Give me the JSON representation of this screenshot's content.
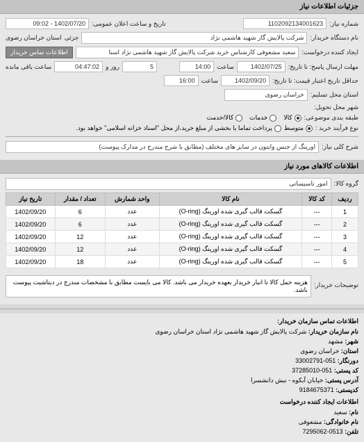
{
  "header": {
    "title": "جزئیات اطلاعات نیاز"
  },
  "form": {
    "req_number_label": "شماره نیاز:",
    "req_number": "1102092134001623",
    "announce_label": "تاریخ و ساعت اعلان عمومی:",
    "announce_value": "1402/07/20 - 09:02",
    "buyer_org_label": "نام دستگاه خریدار:",
    "buyer_org": "شرکت پالایش گاز شهید هاشمی نژاد",
    "jazi_label": "جزئی",
    "province": "استان خراسان رضوی",
    "requester_label": "ایجاد کننده درخواست:",
    "requester": "سعید مشعوفی کارشناس خرید شرکت پالایش گاز شهید هاشمی نژاد   استا",
    "contact_btn": "اطلاعات تماس خریدار",
    "deadline_send_label": "مهلت ارسال پاسخ: تا تاریخ:",
    "deadline_send_date": "1402/07/25",
    "deadline_send_time_label": "ساعت",
    "deadline_send_time": "14:00",
    "remaining_days": "5",
    "remaining_days_label": "روز و",
    "remaining_time": "04:47:02",
    "remaining_label": "ساعت باقی مانده",
    "validity_label": "حداقل تاریخ اعتبار قیمت: تا تاریخ:",
    "validity_date": "1402/09/20",
    "validity_time_label": "ساعت",
    "validity_time": "16:00",
    "location_label": "استان محل تسلیم:",
    "location": "خراسان رضوی",
    "city_label": "شهر محل تحویل:",
    "category_label": "طبقه بندی موضوعی:",
    "cat_kala": "کالا",
    "cat_khadamat": "خدمات",
    "cat_kala_khadamat": "کالا/خدمت",
    "purchase_type_label": "نوع فرآیند خرید :",
    "pt_medium": "متوسط",
    "pt_note": "پرداخت تماما یا بخشی از مبلغ خرید،از محل \"اسناد خزانه اسلامی\" خواهد بود.",
    "need_desc_label": "شرح کلی نیاز:",
    "need_desc": "اورینگ از جنس وایتون در سایز های مختلف (مطابق با شرح مندرج در مدارک پیوست)"
  },
  "goods_header": "اطلاعات کالاهای مورد نیاز",
  "goods_group_label": "گروه کالا:",
  "goods_group": "امور تاسیساتی",
  "table": {
    "columns": [
      "ردیف",
      "کد کالا",
      "نام کالا",
      "واحد شمارش",
      "تعداد / مقدار",
      "تاریخ نیاز"
    ],
    "rows": [
      [
        "1",
        "---",
        "گسکت قالب گیری شده اورینگ (O-ring)",
        "عدد",
        "6",
        "1402/09/20"
      ],
      [
        "2",
        "---",
        "گسکت قالب گیری شده اورینگ (O-ring)",
        "عدد",
        "6",
        "1402/09/20"
      ],
      [
        "3",
        "---",
        "گسکت قالب گیری شده اورینگ (O-ring)",
        "عدد",
        "12",
        "1402/09/20"
      ],
      [
        "4",
        "---",
        "گسکت قالب گیری شده اورینگ (O-ring)",
        "عدد",
        "12",
        "1402/09/20"
      ],
      [
        "5",
        "---",
        "گسکت قالب گیری شده اورینگ (O-ring)",
        "عدد",
        "18",
        "1402/09/20"
      ]
    ]
  },
  "buyer_note_label": "توضیحات خریدار:",
  "buyer_note": "هزینه حمل کالا تا انبار خریدار بعهده خریدار می باشد. کالا می بایست مطابق با مشخصات مندرج در دیتاشیت پیوست باشد.",
  "contact": {
    "title": "اطلاعات تماس سازمان خریدار:",
    "org_label": "نام سازمان خریدار:",
    "org": "شرکت پالایش گاز شهید هاشمی نژاد استان خراسان رضوی",
    "city_label": "شهر:",
    "city": "مشهد",
    "province_label": "استان:",
    "province": "خراسان رضوی",
    "fax_label": "دورنگار:",
    "fax": "051-33002791",
    "postal_label": "کد پستی:",
    "postal": "051-37285010",
    "address_label": "آدرس پستی:",
    "address": "خیابان آبکوه - نبش دانشسرا",
    "postcode_label": "کدپستی:",
    "postcode": "9184675371",
    "creator_title": "اطلاعات ایجاد کننده درخواست",
    "name_label": "نام:",
    "name": "سعید",
    "family_label": "نام خانوادگی:",
    "family": "مشعوفی",
    "phone_label": "تلفن:",
    "phone": "0513-7295062"
  }
}
